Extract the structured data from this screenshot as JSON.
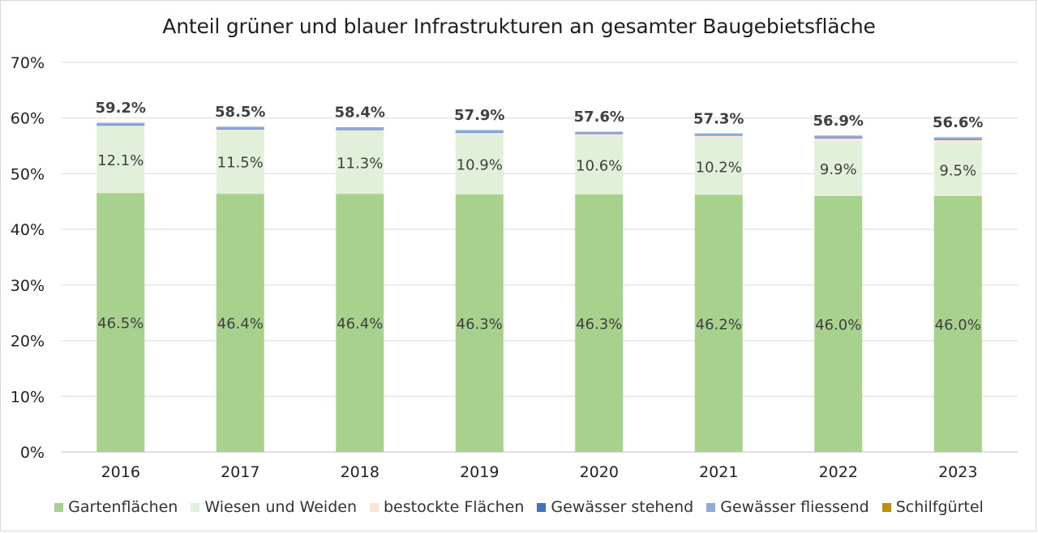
{
  "chart_data": {
    "type": "bar",
    "stacked": true,
    "title": "Anteil grüner und blauer Infrastrukturen an gesamter Baugebietsfläche",
    "xlabel": "",
    "ylabel": "",
    "ylim": [
      0,
      70
    ],
    "yticks": [
      "0%",
      "10%",
      "20%",
      "30%",
      "40%",
      "50%",
      "60%",
      "70%"
    ],
    "categories": [
      "2016",
      "2017",
      "2018",
      "2019",
      "2020",
      "2021",
      "2022",
      "2023"
    ],
    "series": [
      {
        "name": "Gartenflächen",
        "color": "#a9d18e",
        "values": [
          46.5,
          46.4,
          46.4,
          46.3,
          46.3,
          46.2,
          46.0,
          46.0
        ],
        "labels": [
          "46.5%",
          "46.4%",
          "46.4%",
          "46.3%",
          "46.3%",
          "46.2%",
          "46.0%",
          "46.0%"
        ]
      },
      {
        "name": "Wiesen und Weiden",
        "color": "#e2f0d9",
        "values": [
          12.1,
          11.5,
          11.3,
          10.9,
          10.6,
          10.2,
          9.9,
          9.5
        ],
        "labels": [
          "12.1%",
          "11.5%",
          "11.3%",
          "10.9%",
          "10.6%",
          "10.2%",
          "9.9%",
          "9.5%"
        ]
      },
      {
        "name": "bestockte Flächen",
        "color": "#fbe5d6",
        "values": [
          0.1,
          0.1,
          0.2,
          0.2,
          0.3,
          0.5,
          0.5,
          0.6
        ]
      },
      {
        "name": "Gewässer stehend",
        "color": "#4472c4",
        "values": [
          0.05,
          0.05,
          0.05,
          0.05,
          0.05,
          0.05,
          0.05,
          0.05
        ]
      },
      {
        "name": "Gewässer fliessend",
        "color": "#8faadc",
        "values": [
          0.4,
          0.4,
          0.4,
          0.4,
          0.3,
          0.3,
          0.4,
          0.4
        ]
      },
      {
        "name": "Schilfgürtel",
        "color": "#bf9000",
        "values": [
          0.0,
          0.0,
          0.0,
          0.0,
          0.0,
          0.0,
          0.0,
          0.0
        ]
      }
    ],
    "totals": [
      59.2,
      58.5,
      58.4,
      57.9,
      57.6,
      57.3,
      56.9,
      56.6
    ],
    "total_labels": [
      "59.2%",
      "58.5%",
      "58.4%",
      "57.9%",
      "57.6%",
      "57.3%",
      "56.9%",
      "56.6%"
    ],
    "grid": true,
    "legend_position": "bottom"
  }
}
